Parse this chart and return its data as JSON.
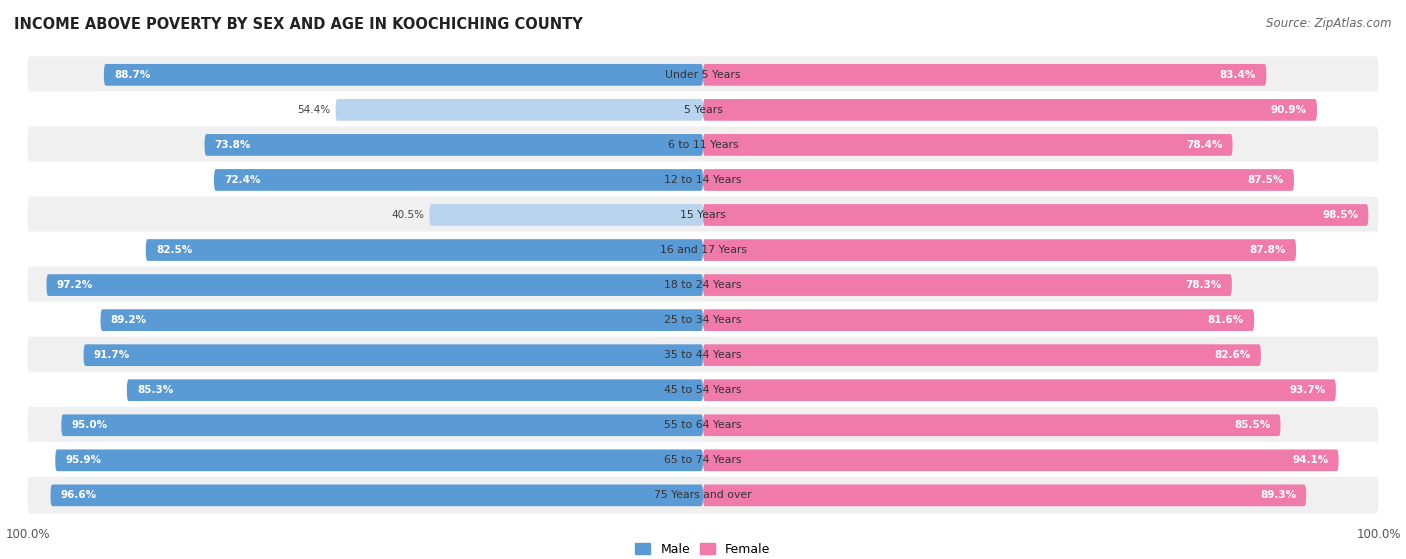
{
  "title": "INCOME ABOVE POVERTY BY SEX AND AGE IN KOOCHICHING COUNTY",
  "source": "Source: ZipAtlas.com",
  "categories": [
    "Under 5 Years",
    "5 Years",
    "6 to 11 Years",
    "12 to 14 Years",
    "15 Years",
    "16 and 17 Years",
    "18 to 24 Years",
    "25 to 34 Years",
    "35 to 44 Years",
    "45 to 54 Years",
    "55 to 64 Years",
    "65 to 74 Years",
    "75 Years and over"
  ],
  "male_values": [
    88.7,
    54.4,
    73.8,
    72.4,
    40.5,
    82.5,
    97.2,
    89.2,
    91.7,
    85.3,
    95.0,
    95.9,
    96.6
  ],
  "female_values": [
    83.4,
    90.9,
    78.4,
    87.5,
    98.5,
    87.8,
    78.3,
    81.6,
    82.6,
    93.7,
    85.5,
    94.1,
    89.3
  ],
  "male_color": "#5b9bd5",
  "male_color_light": "#b8d4ee",
  "female_color": "#f07aaa",
  "female_color_light": "#f7bcd5",
  "male_label": "Male",
  "female_label": "Female",
  "background_color": "#ffffff",
  "row_bg_color": "#f0f0f0",
  "row_white_color": "#ffffff",
  "max_val": 100.0
}
